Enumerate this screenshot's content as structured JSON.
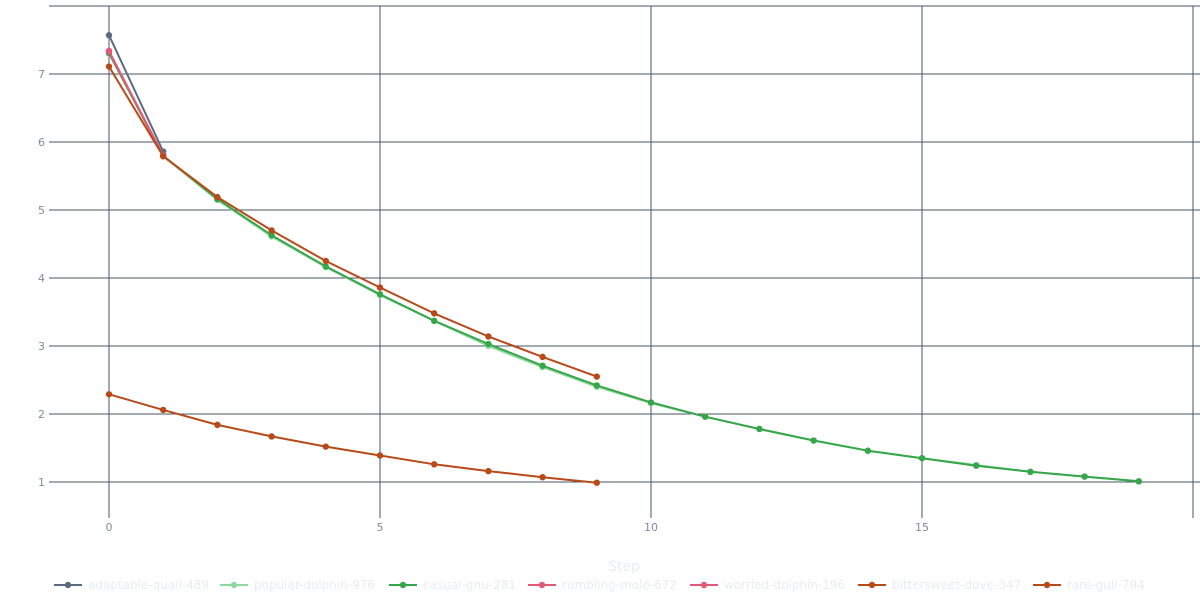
{
  "chart_data": {
    "type": "line",
    "xlabel": "Step",
    "ylabel": "",
    "xlim": [
      -1.0,
      20.0
    ],
    "ylim": [
      0.5,
      7.85
    ],
    "xticks": [
      0,
      5,
      10,
      15
    ],
    "yticks": [
      1,
      2,
      3,
      4,
      5,
      6,
      7
    ],
    "grid": true,
    "legend_position": "bottom",
    "series": [
      {
        "name": "adaptable-quail-489",
        "color": "#5c6b82",
        "x": [
          0,
          1
        ],
        "y": [
          7.57,
          5.86
        ]
      },
      {
        "name": "popular-dolphin-976",
        "color": "#8fd9a0",
        "x": [
          0,
          1,
          2,
          3,
          4,
          5,
          6,
          7,
          8,
          9,
          10,
          11,
          12,
          13,
          14,
          15,
          16,
          17,
          18,
          19
        ],
        "y": [
          7.3,
          5.79,
          5.15,
          4.61,
          4.16,
          3.75,
          3.37,
          3.0,
          2.69,
          2.4,
          2.16,
          1.96,
          1.78,
          1.61,
          1.46,
          1.35,
          1.25,
          1.15,
          1.08,
          1.01
        ]
      },
      {
        "name": "casual-gnu-281",
        "color": "#37a64a",
        "x": [
          0,
          1,
          2,
          3,
          4,
          5,
          6,
          7,
          8,
          9,
          10,
          11,
          12,
          13,
          14,
          15,
          16,
          17,
          18,
          19
        ],
        "y": [
          7.31,
          5.8,
          5.16,
          4.63,
          4.17,
          3.76,
          3.37,
          3.03,
          2.71,
          2.42,
          2.17,
          1.96,
          1.78,
          1.61,
          1.46,
          1.35,
          1.24,
          1.15,
          1.08,
          1.01
        ]
      },
      {
        "name": "rumbling-mole-672",
        "color": "#e05a7a",
        "x": [
          0,
          1
        ],
        "y": [
          7.34,
          5.8
        ]
      },
      {
        "name": "worried-dolphin-196",
        "color": "#e05a7a",
        "x": [
          0,
          1
        ],
        "y": [
          7.33,
          5.8
        ]
      },
      {
        "name": "bittersweet-dove-347",
        "color": "#b84a1a",
        "x": [
          0,
          1,
          2,
          3,
          4,
          5,
          6,
          7,
          8,
          9
        ],
        "y": [
          7.11,
          5.79,
          5.19,
          4.7,
          4.25,
          3.86,
          3.48,
          3.14,
          2.84,
          2.55
        ]
      },
      {
        "name": "rare-gull-794",
        "color": "#b84a1a",
        "x": [
          0,
          1,
          2,
          3,
          4,
          5,
          6,
          7,
          8,
          9
        ],
        "y": [
          2.29,
          2.06,
          1.84,
          1.67,
          1.52,
          1.39,
          1.26,
          1.16,
          1.07,
          0.99
        ]
      }
    ]
  }
}
